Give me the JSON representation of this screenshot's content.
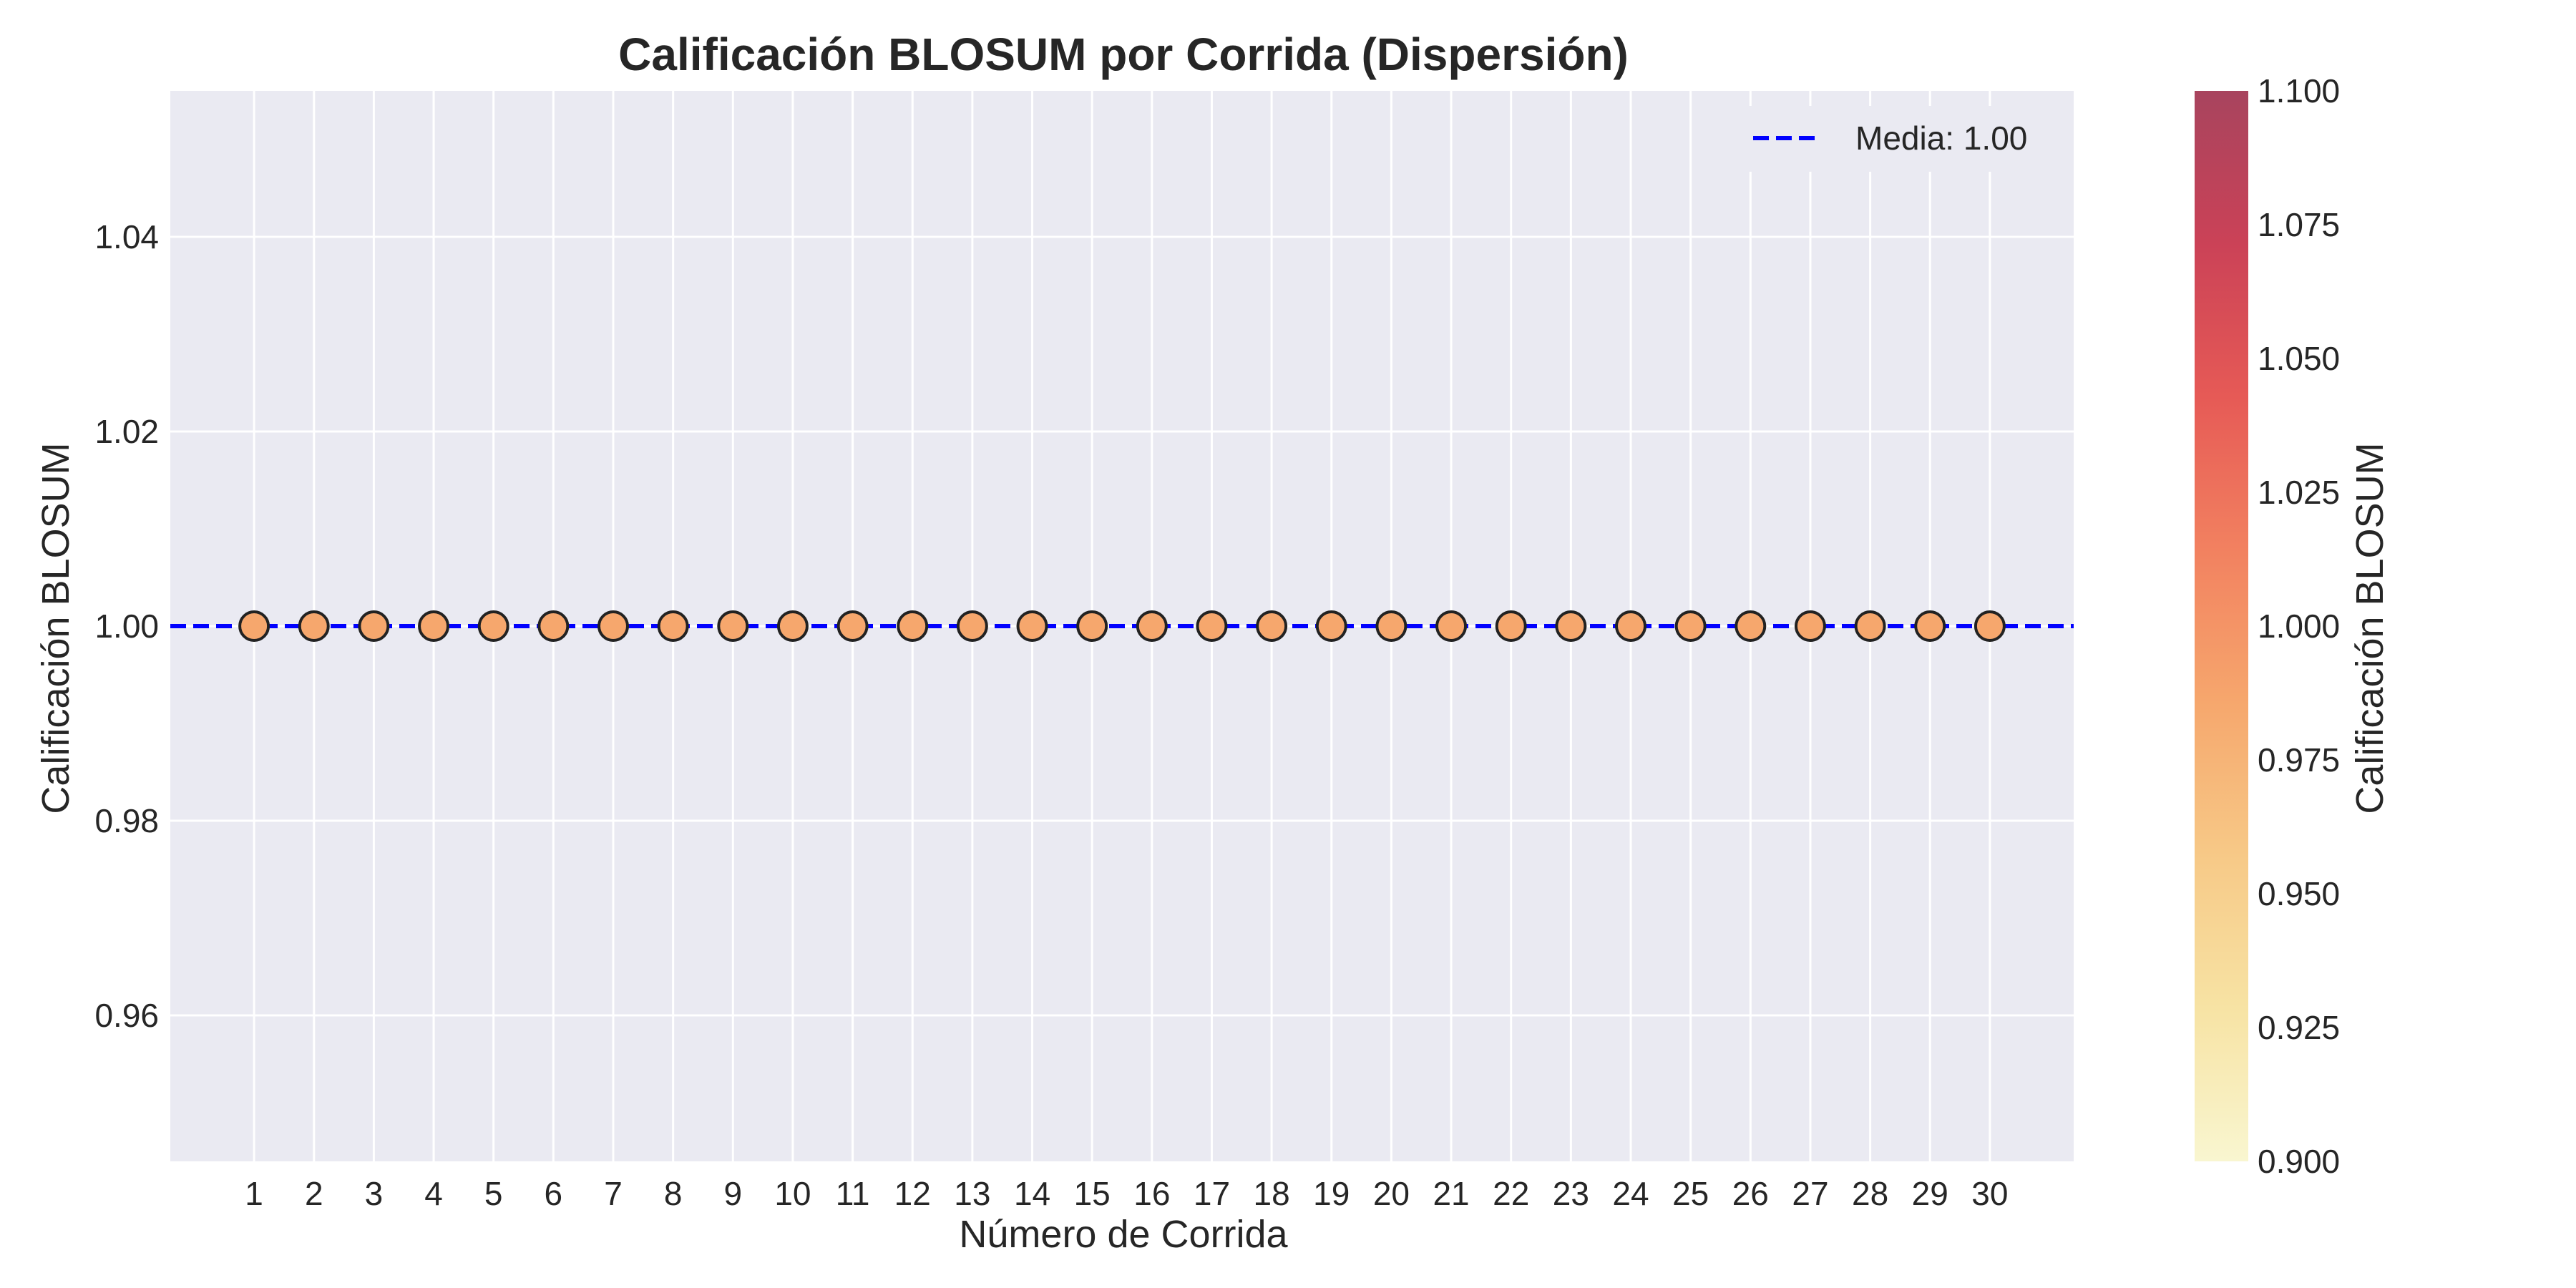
{
  "chart_data": {
    "type": "scatter",
    "title": "Calificación BLOSUM por Corrida (Dispersión)",
    "xlabel": "Número de Corrida",
    "ylabel": "Calificación BLOSUM",
    "xlim": [
      -0.4,
      31.4
    ],
    "ylim": [
      0.945,
      1.055
    ],
    "x_ticks": [
      1,
      2,
      3,
      4,
      5,
      6,
      7,
      8,
      9,
      10,
      11,
      12,
      13,
      14,
      15,
      16,
      17,
      18,
      19,
      20,
      21,
      22,
      23,
      24,
      25,
      26,
      27,
      28,
      29,
      30
    ],
    "y_ticks": [
      0.96,
      0.98,
      1.0,
      1.02,
      1.04
    ],
    "y_tick_labels": [
      "0.96",
      "0.98",
      "1.00",
      "1.02",
      "1.04"
    ],
    "grid": true,
    "series": [
      {
        "x": [
          1,
          2,
          3,
          4,
          5,
          6,
          7,
          8,
          9,
          10,
          11,
          12,
          13,
          14,
          15,
          16,
          17,
          18,
          19,
          20,
          21,
          22,
          23,
          24,
          25,
          26,
          27,
          28,
          29,
          30
        ],
        "values": [
          1.0,
          1.0,
          1.0,
          1.0,
          1.0,
          1.0,
          1.0,
          1.0,
          1.0,
          1.0,
          1.0,
          1.0,
          1.0,
          1.0,
          1.0,
          1.0,
          1.0,
          1.0,
          1.0,
          1.0,
          1.0,
          1.0,
          1.0,
          1.0,
          1.0,
          1.0,
          1.0,
          1.0,
          1.0,
          1.0
        ],
        "color": "#f6a76d",
        "edge_color": "#222222"
      }
    ],
    "mean_line": {
      "value": 1.0,
      "label": "Media: 1.00",
      "color": "#0000ff",
      "style": "dashed"
    },
    "legend": {
      "placement": "top-right"
    },
    "colorbar": {
      "label": "Calificación BLOSUM",
      "range": [
        0.9,
        1.1
      ],
      "ticks": [
        0.9,
        0.925,
        0.95,
        0.975,
        1.0,
        1.025,
        1.05,
        1.075,
        1.1
      ],
      "tick_labels": [
        "0.900",
        "0.925",
        "0.950",
        "0.975",
        "1.000",
        "1.025",
        "1.050",
        "1.075",
        "1.100"
      ],
      "colormap": [
        "#f9f6d0",
        "#f7e3a4",
        "#f7c987",
        "#f6a76d",
        "#f28160",
        "#e65a56",
        "#cb4257",
        "#a8445e"
      ]
    },
    "colors": {
      "plot_background": "#eaeaf2",
      "grid": "#ffffff"
    }
  }
}
